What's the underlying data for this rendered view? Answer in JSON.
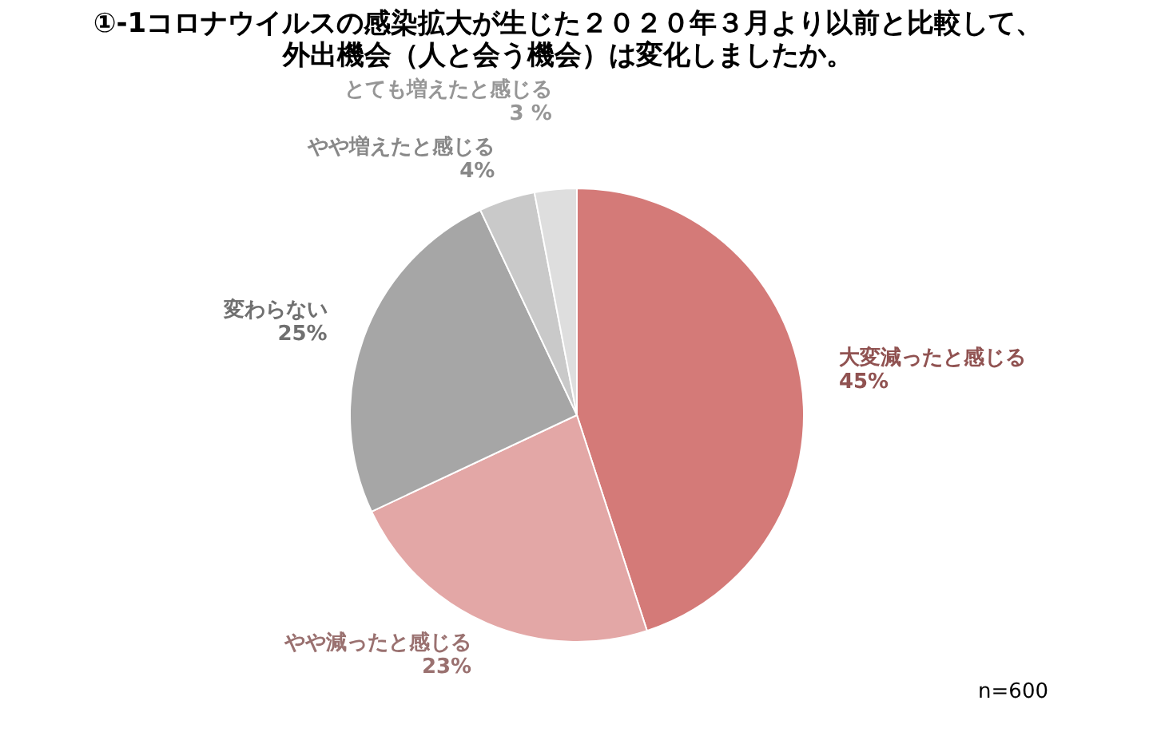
{
  "chart_data": {
    "type": "pie",
    "title": "①-1コロナウイルスの感染拡大が生じた２０２０年３月より以前と比較して、外出機会（人と会う機会）は変化しましたか。",
    "categories": [
      "大変減ったと感じる",
      "やや減ったと感じる",
      "変わらない",
      "やや増えたと感じる",
      "とても増えたと感じる"
    ],
    "values": [
      45,
      23,
      25,
      4,
      3
    ],
    "value_labels": [
      "45%",
      "23%",
      "25%",
      "4%",
      "3 %"
    ],
    "colors": [
      "#d47a78",
      "#e3a7a6",
      "#a6a6a6",
      "#c9c9c9",
      "#dedede"
    ],
    "annotations": [
      "n=600"
    ],
    "legend": false
  }
}
